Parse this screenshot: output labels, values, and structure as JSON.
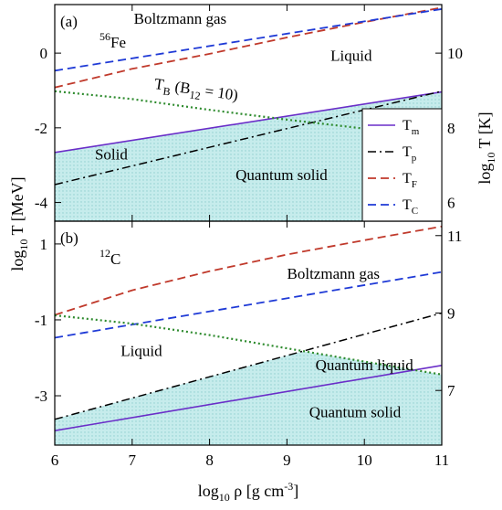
{
  "chart_data": [
    {
      "type": "line",
      "panel_label": "(a)",
      "element": {
        "pre": "56",
        "base": "Fe"
      },
      "xlim": [
        6,
        11
      ],
      "ylim": [
        -4.5,
        1.3
      ],
      "xticks": [
        6,
        7,
        8,
        9,
        10,
        11
      ],
      "yticks_left": [
        {
          "v": 0,
          "t": "0"
        },
        {
          "v": -2,
          "t": "-2"
        },
        {
          "v": -4,
          "t": "-4"
        }
      ],
      "yticks_right": [
        {
          "v": 0,
          "t": "10"
        },
        {
          "v": -2,
          "t": "8"
        },
        {
          "v": -4,
          "t": "6"
        }
      ],
      "fill_below": "Tm",
      "fill_color": "#bfe6e6",
      "series": [
        {
          "key": "Tm",
          "style": "solid",
          "color": "#6a2ec8",
          "x": [
            6,
            11
          ],
          "y": [
            -2.66,
            -1.04
          ]
        },
        {
          "key": "Tp",
          "style": "dashdot",
          "color": "#000000",
          "x": [
            6,
            11
          ],
          "y": [
            -3.52,
            -1.02
          ]
        },
        {
          "key": "TF",
          "style": "dashed",
          "color": "#c0392b",
          "x": [
            6,
            7,
            8,
            9,
            10,
            11
          ],
          "y": [
            -0.92,
            -0.42,
            -0.02,
            0.42,
            0.83,
            1.22
          ]
        },
        {
          "key": "TC",
          "style": "dashed",
          "color": "#1f3ad6",
          "x": [
            6,
            11
          ],
          "y": [
            -0.47,
            1.18
          ]
        },
        {
          "key": "TB",
          "style": "dotted",
          "color": "#2e8b2e",
          "x": [
            6,
            7,
            8,
            9,
            10,
            11
          ],
          "y": [
            -1.02,
            -1.23,
            -1.52,
            -1.78,
            -2.02,
            -2.24
          ]
        }
      ],
      "annotations": [
        {
          "kind": "plain",
          "text": "Boltzmann gas",
          "x": 7.62,
          "y": 0.78
        },
        {
          "kind": "plain",
          "text": "Liquid",
          "x": 9.83,
          "y": -0.2
        },
        {
          "kind": "TB",
          "x": 7.28,
          "y": -0.95
        },
        {
          "kind": "plain",
          "text": "Solid",
          "x": 6.73,
          "y": -2.85
        },
        {
          "kind": "plain",
          "text": "Quantum solid",
          "x": 8.93,
          "y": -3.4
        }
      ],
      "legend": {
        "placement": "right",
        "entries": [
          {
            "key": "Tm",
            "base": "T",
            "sub": "m"
          },
          {
            "key": "Tp",
            "base": "T",
            "sub": "p"
          },
          {
            "key": "TF",
            "base": "T",
            "sub": "F"
          },
          {
            "key": "TC",
            "base": "T",
            "sub": "C"
          }
        ]
      }
    },
    {
      "type": "line",
      "panel_label": "(b)",
      "element": {
        "pre": "12",
        "base": "C"
      },
      "xlim": [
        6,
        11
      ],
      "ylim": [
        -4.3,
        1.6
      ],
      "xticks": [
        6,
        7,
        8,
        9,
        10,
        11
      ],
      "yticks_left": [
        {
          "v": 1,
          "t": "1"
        },
        {
          "v": -1,
          "t": "-1"
        },
        {
          "v": -3,
          "t": "-3"
        }
      ],
      "yticks_right": [
        {
          "v": 1.22,
          "t": "11"
        },
        {
          "v": -0.82,
          "t": "9"
        },
        {
          "v": -2.86,
          "t": "7"
        }
      ],
      "fill_below": "TB_Tp_min",
      "fill_color": "#bfe6e6",
      "series": [
        {
          "key": "Tm",
          "style": "solid",
          "color": "#6a2ec8",
          "x": [
            6,
            11
          ],
          "y": [
            -3.92,
            -2.2
          ]
        },
        {
          "key": "Tp",
          "style": "dashdot",
          "color": "#000000",
          "x": [
            6,
            11
          ],
          "y": [
            -3.62,
            -0.82
          ]
        },
        {
          "key": "TF",
          "style": "dashed",
          "color": "#c0392b",
          "x": [
            6,
            7,
            8,
            9,
            10,
            11
          ],
          "y": [
            -0.87,
            -0.22,
            0.28,
            0.72,
            1.1,
            1.46
          ]
        },
        {
          "key": "TC",
          "style": "dashed",
          "color": "#1f3ad6",
          "x": [
            6,
            11
          ],
          "y": [
            -1.47,
            0.26
          ]
        },
        {
          "key": "TB",
          "style": "dotted",
          "color": "#2e8b2e",
          "x": [
            6,
            7,
            8,
            9,
            10,
            11
          ],
          "y": [
            -0.88,
            -1.1,
            -1.4,
            -1.75,
            -2.1,
            -2.44
          ]
        }
      ],
      "annotations": [
        {
          "kind": "plain",
          "text": "Boltzmann gas",
          "x": 9.6,
          "y": 0.08
        },
        {
          "kind": "plain",
          "text": "Liquid",
          "x": 7.12,
          "y": -1.95
        },
        {
          "kind": "plain",
          "text": "Quantum liquid",
          "x": 10.0,
          "y": -2.32
        },
        {
          "kind": "plain",
          "text": "Quantum solid",
          "x": 9.88,
          "y": -3.56
        }
      ]
    }
  ],
  "tb_label": {
    "base": "T",
    "sub": "B",
    "open": " (B",
    "sub2": "12",
    "close": " = 10)"
  },
  "xlabel": {
    "pre": "log",
    "sub": "10",
    "mid": " ρ [g cm",
    "sup": "-3",
    "post": "]"
  },
  "ylabel_left": {
    "pre": "log",
    "sub": "10",
    "post": " T [MeV]"
  },
  "ylabel_right": {
    "pre": "log",
    "sub": "10",
    "post": " T [K]"
  }
}
